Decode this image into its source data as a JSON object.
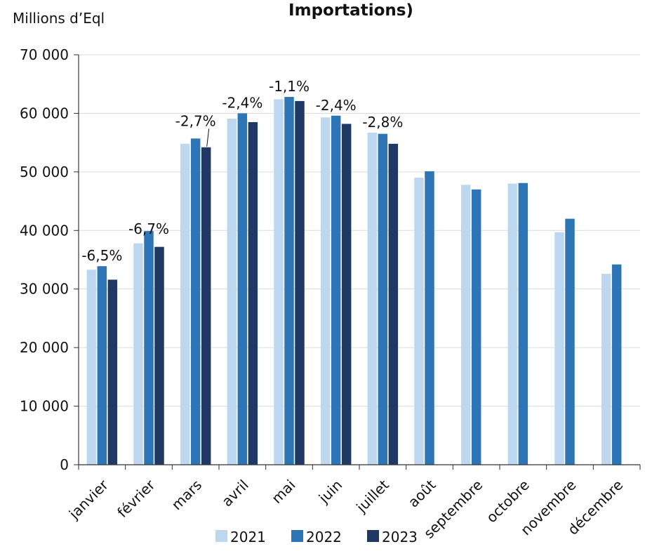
{
  "chart_data": {
    "type": "bar",
    "title": "Importations)",
    "ylabel": "Millions d’Eql",
    "xlabel": "",
    "ylim": [
      0,
      70000
    ],
    "yticks": [
      0,
      10000,
      20000,
      30000,
      40000,
      50000,
      60000,
      70000
    ],
    "ytick_labels": [
      "0",
      "10 000",
      "20 000",
      "30 000",
      "40 000",
      "50 000",
      "60 000",
      "70 000"
    ],
    "grid": "horizontal",
    "legend_position": "bottom",
    "categories": [
      "janvier",
      "février",
      "mars",
      "avril",
      "mai",
      "juin",
      "juillet",
      "août",
      "septembre",
      "octobre",
      "novembre",
      "décembre"
    ],
    "series": [
      {
        "name": "2021",
        "color": "#bdd7ee",
        "values": [
          33300,
          37800,
          54800,
          59100,
          62400,
          59300,
          56700,
          49000,
          47800,
          48000,
          39700,
          32600
        ]
      },
      {
        "name": "2022",
        "color": "#2e75b6",
        "values": [
          33900,
          39900,
          55700,
          60000,
          62800,
          59600,
          56500,
          50100,
          47000,
          48100,
          42000,
          34200
        ]
      },
      {
        "name": "2023",
        "color": "#203864",
        "values": [
          31600,
          37200,
          54200,
          58500,
          62100,
          58200,
          54800,
          null,
          null,
          null,
          null,
          null
        ]
      }
    ],
    "annotations": [
      {
        "category": "janvier",
        "text": "-6,5%"
      },
      {
        "category": "février",
        "text": "-6,7%"
      },
      {
        "category": "mars",
        "text": "-2,7%"
      },
      {
        "category": "avril",
        "text": "-2,4%"
      },
      {
        "category": "mai",
        "text": "-1,1%"
      },
      {
        "category": "juin",
        "text": "-2,4%"
      },
      {
        "category": "juillet",
        "text": "-2,8%"
      }
    ]
  }
}
